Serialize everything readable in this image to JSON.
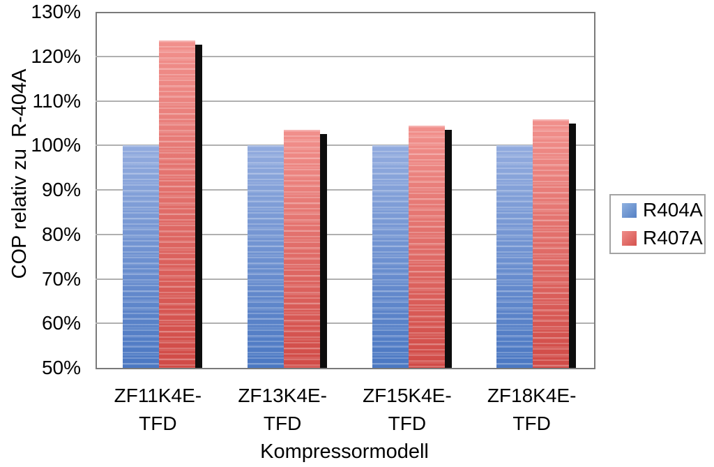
{
  "chart_data": {
    "type": "bar",
    "title": "",
    "xlabel": "Kompressormodell",
    "ylabel": "COP relativ zu  R-404A",
    "categories": [
      "ZF11K4E-\nTFD",
      "ZF13K4E-\nTFD",
      "ZF15K4E-\nTFD",
      "ZF18K4E-\nTFD"
    ],
    "series": [
      {
        "name": "R404A",
        "values": [
          100,
          100,
          100,
          100
        ],
        "color_top": "#92abde",
        "color_bottom": "#4a77c2",
        "legend_color_top": "#8fb1e0",
        "legend_color_bottom": "#5580c4"
      },
      {
        "name": "R407A",
        "values": [
          123.5,
          103.5,
          104.5,
          105.8
        ],
        "color_top": "#f1908c",
        "color_bottom": "#d04a46",
        "legend_color_top": "#ef8d89",
        "legend_color_bottom": "#d5524e"
      }
    ],
    "ylim": [
      50,
      130
    ],
    "ytick_step": 10,
    "ytick_labels": [
      "130%",
      "120%",
      "110%",
      "100%",
      "90%",
      "80%",
      "70%",
      "60%",
      "50%"
    ],
    "legend_position": "right",
    "grid": "horizontal",
    "bar_shadow_color": "#0d0d0d",
    "gridline_color": "#b0b0b0",
    "plot_border_color": "#7a7a7a",
    "text_color": "#000000",
    "background_color": "#ffffff"
  }
}
